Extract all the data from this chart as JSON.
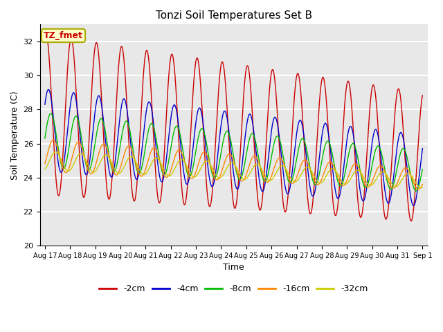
{
  "title": "Tonzi Soil Temperatures Set B",
  "xlabel": "Time",
  "ylabel": "Soil Temperature (C)",
  "ylim": [
    20,
    33
  ],
  "yticks": [
    20,
    22,
    24,
    26,
    28,
    30,
    32
  ],
  "series": {
    "-2cm": {
      "color": "#cc0000",
      "label": "-2cm"
    },
    "-4cm": {
      "color": "#0000cc",
      "label": "-4cm"
    },
    "-8cm": {
      "color": "#00bb00",
      "label": "-8cm"
    },
    "-16cm": {
      "color": "#ff8800",
      "label": "-16cm"
    },
    "-32cm": {
      "color": "#cccc00",
      "label": "-32cm"
    }
  },
  "legend_label": "TZ_fmet",
  "legend_bg": "#ffffcc",
  "legend_border": "#aaaa00",
  "plot_bg": "#e8e8e8",
  "grid_color": "#ffffff",
  "n_points": 1440,
  "n_days": 15
}
